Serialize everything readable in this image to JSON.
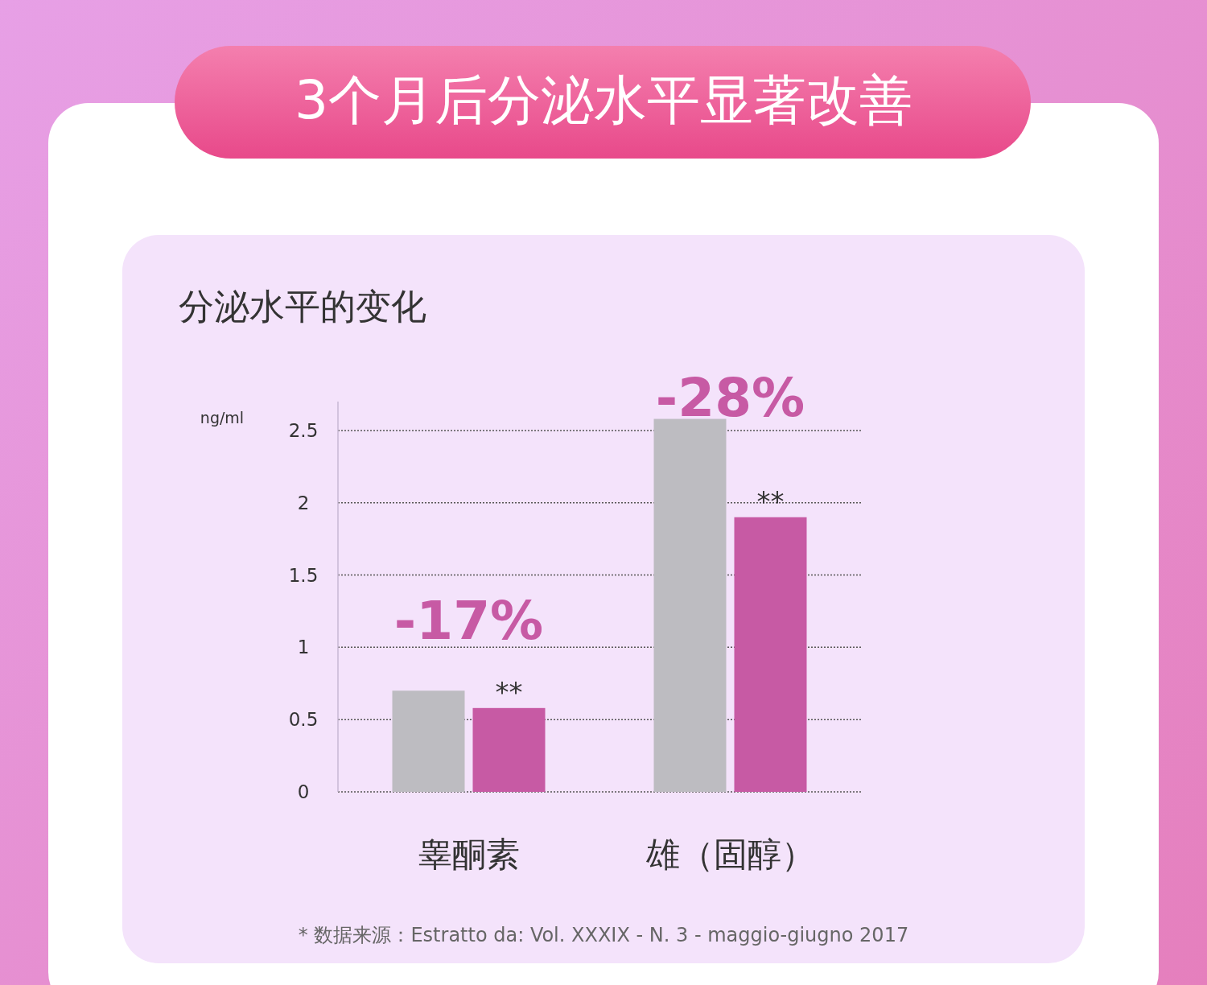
{
  "chart_data": {
    "type": "bar",
    "title": "3个月后分泌水平显著改善",
    "subtitle": "分泌水平的变化",
    "ylabel": "ng/ml",
    "categories": [
      "睾酮素",
      "雄（固醇）"
    ],
    "series": [
      {
        "color": "#bdbcc1",
        "values": [
          0.7,
          2.58
        ]
      },
      {
        "color": "#c75aa4",
        "values": [
          0.58,
          1.9
        ],
        "value_labels": [
          "**",
          "**"
        ]
      }
    ],
    "ylim": [
      0,
      2.7
    ],
    "yticks": [
      0,
      0.5,
      1,
      1.5,
      2,
      2.5
    ],
    "grid": "y",
    "annotations": [
      "-17%",
      "-28%",
      "* 数据来源：Estratto da: Vol. XXXIX - N. 3 - maggio-giugno 2017"
    ]
  }
}
